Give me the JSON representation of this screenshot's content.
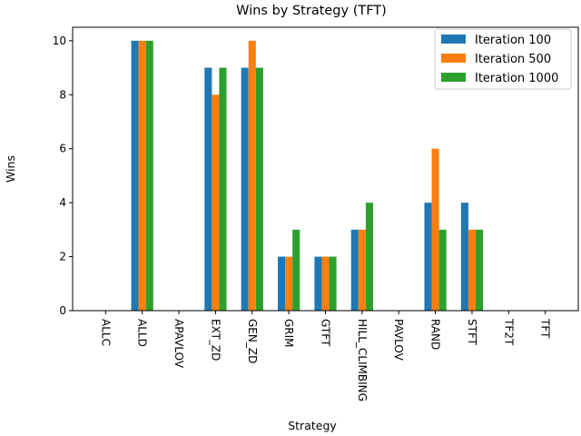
{
  "chart_data": {
    "type": "bar",
    "title": "Wins by Strategy (TFT)",
    "xlabel": "Strategy",
    "ylabel": "Wins",
    "ylim": [
      0,
      10.5
    ],
    "yticks": [
      0,
      2,
      4,
      6,
      8,
      10
    ],
    "categories": [
      "ALLC",
      "ALLD",
      "APAVLOV",
      "EXT_ZD",
      "GEN_ZD",
      "GRIM",
      "GTFT",
      "HILL_CLIMBING",
      "PAVLOV",
      "RAND",
      "STFT",
      "TF2T",
      "TFT"
    ],
    "series": [
      {
        "name": "Iteration 100",
        "color": "#1f77b4",
        "values": [
          0,
          10,
          0,
          9,
          9,
          2,
          2,
          3,
          0,
          4,
          4,
          0,
          0
        ]
      },
      {
        "name": "Iteration 500",
        "color": "#ff7f0e",
        "values": [
          0,
          10,
          0,
          8,
          10,
          2,
          2,
          3,
          0,
          6,
          3,
          0,
          0
        ]
      },
      {
        "name": "Iteration 1000",
        "color": "#2ca02c",
        "values": [
          0,
          10,
          0,
          9,
          9,
          3,
          2,
          4,
          0,
          3,
          3,
          0,
          0
        ]
      }
    ],
    "grid": false,
    "legend_position": "top-right"
  }
}
